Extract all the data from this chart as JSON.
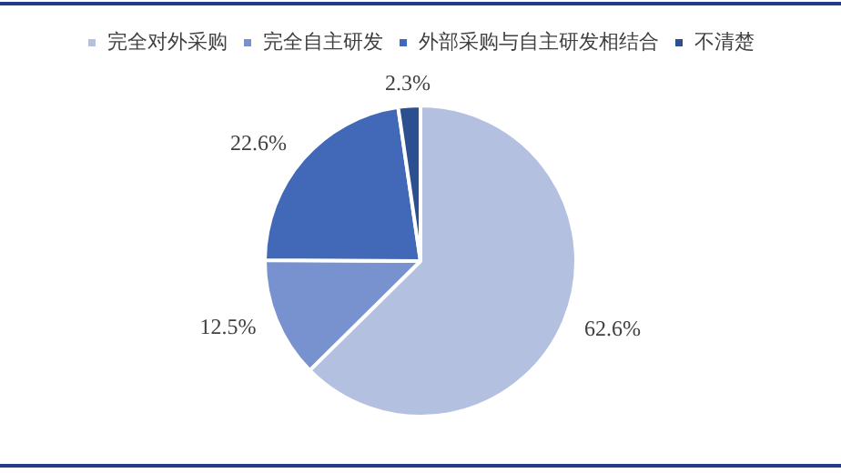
{
  "chart_data": {
    "type": "pie",
    "categories": [
      "完全对外采购",
      "完全自主研发",
      "外部采购与自主研发相结合",
      "不清楚"
    ],
    "values": [
      62.6,
      12.5,
      22.6,
      2.3
    ],
    "colors": [
      "#b4c0e0",
      "#7892d0",
      "#4169b8",
      "#2c4f8f"
    ],
    "value_labels": [
      "62.6%",
      "12.5%",
      "22.6%",
      "2.3%"
    ],
    "legend": "top"
  }
}
